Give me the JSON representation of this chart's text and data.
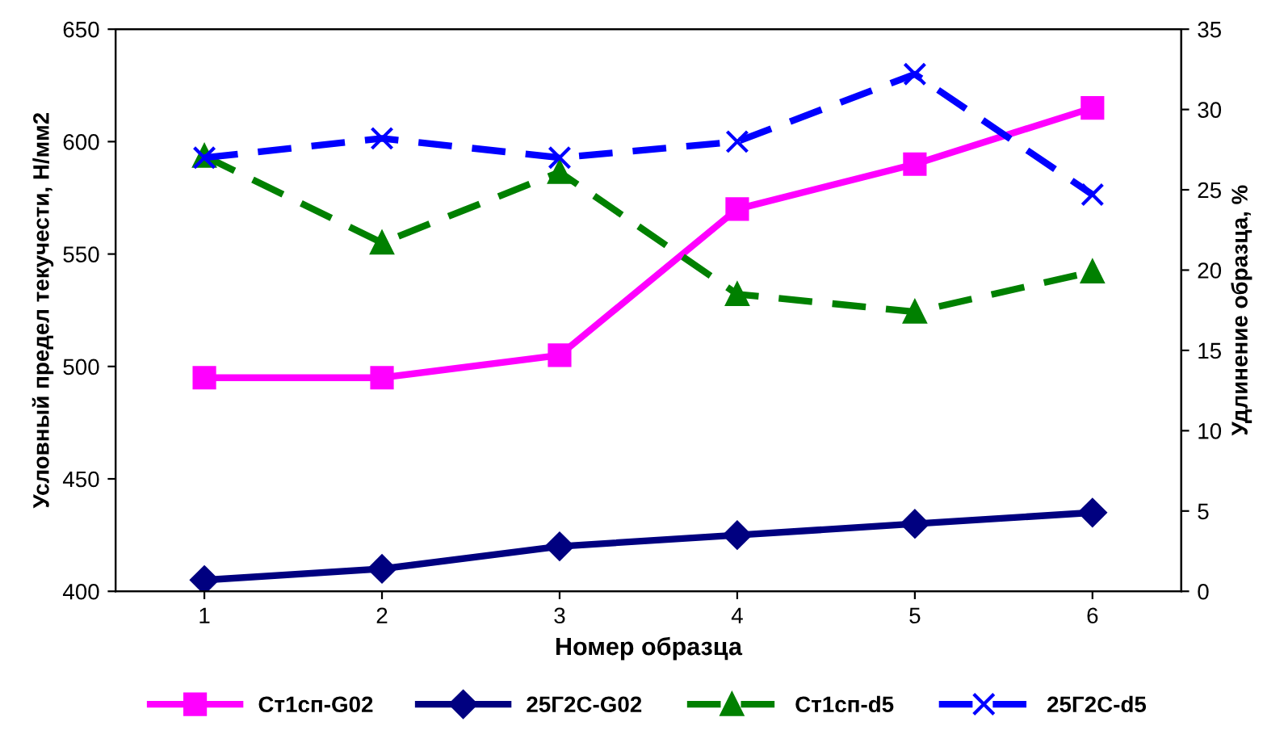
{
  "chart_data": {
    "type": "line",
    "xlabel": "Номер образца",
    "ylabel": "Условный предел текучести, Н/мм2",
    "y2label": "Удлинение образца, %",
    "categories": [
      "1",
      "2",
      "3",
      "4",
      "5",
      "6"
    ],
    "ylim": [
      400,
      650
    ],
    "yticks": [
      400,
      450,
      500,
      550,
      600,
      650
    ],
    "y2lim": [
      0,
      35
    ],
    "y2ticks": [
      0,
      5,
      10,
      15,
      20,
      25,
      30,
      35
    ],
    "grid": false,
    "legend": "bottom",
    "series": [
      {
        "name": "Ст1сп-G02",
        "color": "#ff00ff",
        "marker": "square",
        "line_style": "solid",
        "values": [
          495,
          495,
          505,
          570,
          590,
          615
        ]
      },
      {
        "name": "25Г2С-G02",
        "color": "#000080",
        "marker": "diamond",
        "line_style": "solid",
        "values": [
          405,
          410,
          420,
          425,
          430,
          435
        ]
      },
      {
        "name": "Ст1сп-d5",
        "color": "#008000",
        "marker": "triangle",
        "line_style": "dashed",
        "axis": "y2",
        "values": [
          27.1,
          21.7,
          26.1,
          18.5,
          17.4,
          19.9
        ]
      },
      {
        "name": "25Г2С-d5",
        "color": "#0000ff",
        "marker": "cross",
        "line_style": "dashed",
        "axis": "y2",
        "values": [
          27,
          28.2,
          27,
          28,
          32.2,
          24.7
        ]
      }
    ]
  }
}
